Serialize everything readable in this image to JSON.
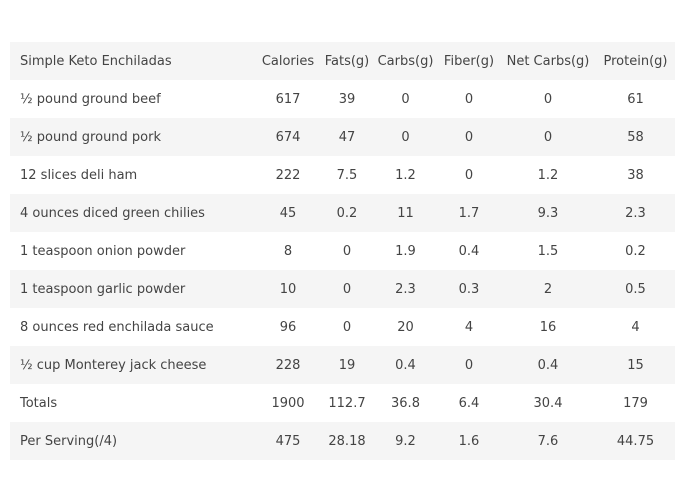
{
  "table": {
    "headers": [
      "Simple Keto Enchiladas",
      "Calories",
      "Fats(g)",
      "Carbs(g)",
      "Fiber(g)",
      "Net Carbs(g)",
      "Protein(g)"
    ],
    "rows": [
      [
        "½ pound ground beef",
        "617",
        "39",
        "0",
        "0",
        "0",
        "61"
      ],
      [
        "½ pound ground pork",
        "674",
        "47",
        "0",
        "0",
        "0",
        "58"
      ],
      [
        "12 slices deli ham",
        "222",
        "7.5",
        "1.2",
        "0",
        "1.2",
        "38"
      ],
      [
        "4 ounces diced green chilies",
        "45",
        "0.2",
        "11",
        "1.7",
        "9.3",
        "2.3"
      ],
      [
        "1 teaspoon onion powder",
        "8",
        "0",
        "1.9",
        "0.4",
        "1.5",
        "0.2"
      ],
      [
        "1 teaspoon garlic powder",
        "10",
        "0",
        "2.3",
        "0.3",
        "2",
        "0.5"
      ],
      [
        "8 ounces red enchilada sauce",
        "96",
        "0",
        "20",
        "4",
        "16",
        "4"
      ],
      [
        "½ cup Monterey jack cheese",
        "228",
        "19",
        "0.4",
        "0",
        "0.4",
        "15"
      ],
      [
        "Totals",
        "1900",
        "112.7",
        "36.8",
        "6.4",
        "30.4",
        "179"
      ],
      [
        "Per Serving(/4)",
        "475",
        "28.18",
        "9.2",
        "1.6",
        "7.6",
        "44.75"
      ]
    ]
  },
  "colors": {
    "text": "#444444",
    "stripe": "#f5f5f5",
    "background": "#ffffff"
  }
}
